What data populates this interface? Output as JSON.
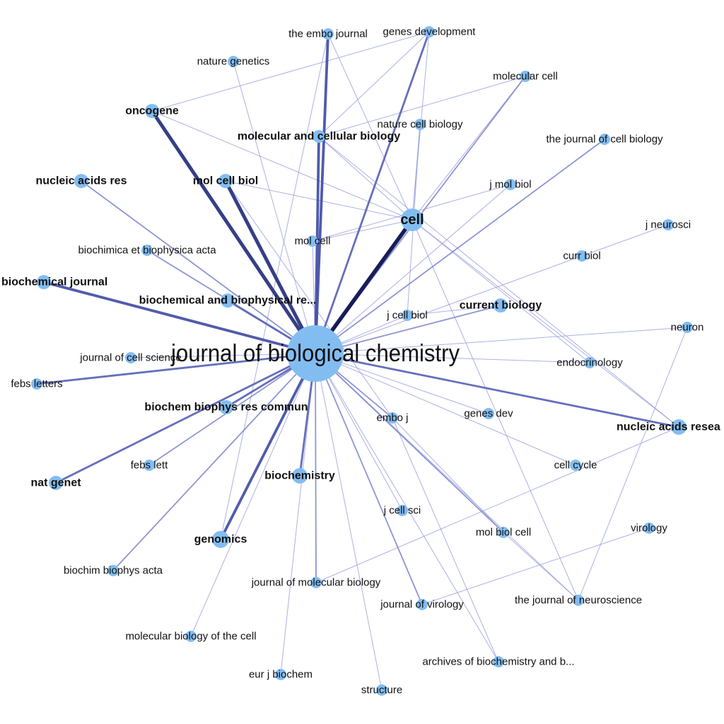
{
  "diagram": {
    "type": "network-graph",
    "node_color": "#82bdf2",
    "hub": "journal of biological chemistry",
    "nodes": [
      {
        "id": "jbc",
        "label": "journal of biological chemistry",
        "weight": "hub"
      },
      {
        "id": "embo_journal",
        "label": "the embo journal",
        "weight": "minor"
      },
      {
        "id": "genes_development",
        "label": "genes  development",
        "weight": "minor"
      },
      {
        "id": "nature_genetics",
        "label": "nature genetics",
        "weight": "minor"
      },
      {
        "id": "molecular_cell",
        "label": "molecular cell",
        "weight": "minor"
      },
      {
        "id": "oncogene",
        "label": "oncogene",
        "weight": "major"
      },
      {
        "id": "nature_cell_biology",
        "label": "nature cell biology",
        "weight": "minor"
      },
      {
        "id": "mcb_full",
        "label": "molecular and cellular biology",
        "weight": "major"
      },
      {
        "id": "jcb_full",
        "label": "the journal of cell biology",
        "weight": "minor"
      },
      {
        "id": "nucleic_acids_res",
        "label": "nucleic acids res",
        "weight": "major"
      },
      {
        "id": "mol_cell_biol",
        "label": "mol cell biol",
        "weight": "major"
      },
      {
        "id": "j_mol_biol",
        "label": "j mol biol",
        "weight": "minor"
      },
      {
        "id": "cell",
        "label": "cell",
        "weight": "major"
      },
      {
        "id": "j_neurosci",
        "label": "j neurosci",
        "weight": "minor"
      },
      {
        "id": "mol_cell",
        "label": "mol cell",
        "weight": "minor"
      },
      {
        "id": "bba_full",
        "label": "biochimica et biophysica acta",
        "weight": "minor"
      },
      {
        "id": "curr_biol",
        "label": "curr biol",
        "weight": "minor"
      },
      {
        "id": "biochemical_journal",
        "label": "biochemical journal",
        "weight": "major"
      },
      {
        "id": "bbrc_full",
        "label": "biochemical and biophysical re...",
        "weight": "major"
      },
      {
        "id": "current_biology",
        "label": "current biology",
        "weight": "major"
      },
      {
        "id": "j_cell_biol",
        "label": "j cell biol",
        "weight": "minor"
      },
      {
        "id": "neuron",
        "label": "neuron",
        "weight": "minor"
      },
      {
        "id": "j_cell_science",
        "label": "journal of cell science",
        "weight": "minor"
      },
      {
        "id": "endocrinology",
        "label": "endocrinology",
        "weight": "minor"
      },
      {
        "id": "febs_letters",
        "label": "febs letters",
        "weight": "minor"
      },
      {
        "id": "bbrc_abbr",
        "label": "biochem biophys res commun",
        "weight": "major"
      },
      {
        "id": "embo_j",
        "label": "embo j",
        "weight": "minor"
      },
      {
        "id": "genes_dev",
        "label": "genes dev",
        "weight": "minor"
      },
      {
        "id": "nar_full",
        "label": "nucleic acids resea",
        "weight": "major"
      },
      {
        "id": "febs_lett",
        "label": "febs lett",
        "weight": "minor"
      },
      {
        "id": "cell_cycle",
        "label": "cell cycle",
        "weight": "minor"
      },
      {
        "id": "nat_genet",
        "label": "nat genet",
        "weight": "major"
      },
      {
        "id": "biochemistry",
        "label": "biochemistry",
        "weight": "major"
      },
      {
        "id": "j_cell_sci",
        "label": "j cell sci",
        "weight": "minor"
      },
      {
        "id": "mol_biol_cell",
        "label": "mol biol cell",
        "weight": "minor"
      },
      {
        "id": "virology",
        "label": "virology",
        "weight": "minor"
      },
      {
        "id": "genomics",
        "label": "genomics",
        "weight": "major"
      },
      {
        "id": "bba_abbr",
        "label": "biochim biophys acta",
        "weight": "minor"
      },
      {
        "id": "jmb_full",
        "label": "journal of molecular biology",
        "weight": "minor"
      },
      {
        "id": "j_virology",
        "label": "journal of virology",
        "weight": "minor"
      },
      {
        "id": "j_neuroscience",
        "label": "the journal of neuroscience",
        "weight": "minor"
      },
      {
        "id": "mbc_full",
        "label": "molecular biology of the cell",
        "weight": "minor"
      },
      {
        "id": "archives",
        "label": "archives of biochemistry and b...",
        "weight": "minor"
      },
      {
        "id": "eur_j_biochem",
        "label": "eur j biochem",
        "weight": "minor"
      },
      {
        "id": "structure",
        "label": "structure",
        "weight": "minor"
      }
    ],
    "edges": [
      {
        "source": "jbc",
        "target": "cell",
        "strength": 6
      },
      {
        "source": "jbc",
        "target": "oncogene",
        "strength": 5
      },
      {
        "source": "jbc",
        "target": "mol_cell_biol",
        "strength": 5
      },
      {
        "source": "jbc",
        "target": "genomics",
        "strength": 4
      },
      {
        "source": "jbc",
        "target": "biochemical_journal",
        "strength": 4
      },
      {
        "source": "jbc",
        "target": "mcb_full",
        "strength": 4
      },
      {
        "source": "jbc",
        "target": "embo_journal",
        "strength": 4
      },
      {
        "source": "jbc",
        "target": "bbrc_full",
        "strength": 3
      },
      {
        "source": "jbc",
        "target": "bbrc_abbr",
        "strength": 3
      },
      {
        "source": "jbc",
        "target": "nat_genet",
        "strength": 3
      },
      {
        "source": "jbc",
        "target": "biochemistry",
        "strength": 3
      },
      {
        "source": "jbc",
        "target": "genes_development",
        "strength": 3
      },
      {
        "source": "jbc",
        "target": "nar_full",
        "strength": 3
      },
      {
        "source": "jbc",
        "target": "febs_letters",
        "strength": 3
      },
      {
        "source": "jbc",
        "target": "jcb_full",
        "strength": 2
      },
      {
        "source": "jbc",
        "target": "molecular_cell",
        "strength": 2
      },
      {
        "source": "jbc",
        "target": "current_biology",
        "strength": 2
      },
      {
        "source": "jbc",
        "target": "febs_lett",
        "strength": 2
      },
      {
        "source": "jbc",
        "target": "bba_full",
        "strength": 2
      },
      {
        "source": "jbc",
        "target": "nucleic_acids_res",
        "strength": 2
      },
      {
        "source": "jbc",
        "target": "jmb_full",
        "strength": 2
      },
      {
        "source": "jbc",
        "target": "j_virology",
        "strength": 2
      },
      {
        "source": "jbc",
        "target": "mol_biol_cell",
        "strength": 2
      },
      {
        "source": "jbc",
        "target": "embo_j",
        "strength": 2
      },
      {
        "source": "jbc",
        "target": "bba_abbr",
        "strength": 2
      },
      {
        "source": "jbc",
        "target": "nature_genetics",
        "strength": 1
      },
      {
        "source": "jbc",
        "target": "neuron",
        "strength": 1
      },
      {
        "source": "jbc",
        "target": "endocrinology",
        "strength": 1
      },
      {
        "source": "jbc",
        "target": "j_cell_science",
        "strength": 1
      },
      {
        "source": "jbc",
        "target": "genes_dev",
        "strength": 1
      },
      {
        "source": "jbc",
        "target": "cell_cycle",
        "strength": 1
      },
      {
        "source": "jbc",
        "target": "j_cell_sci",
        "strength": 1
      },
      {
        "source": "jbc",
        "target": "mbc_full",
        "strength": 1
      },
      {
        "source": "jbc",
        "target": "eur_j_biochem",
        "strength": 1
      },
      {
        "source": "jbc",
        "target": "structure",
        "strength": 1
      },
      {
        "source": "jbc",
        "target": "archives",
        "strength": 1
      },
      {
        "source": "jbc",
        "target": "j_neuroscience",
        "strength": 1
      },
      {
        "source": "jbc",
        "target": "j_mol_biol",
        "strength": 1
      },
      {
        "source": "jbc",
        "target": "mol_cell",
        "strength": 1
      },
      {
        "source": "jbc",
        "target": "j_cell_biol",
        "strength": 1
      },
      {
        "source": "jbc",
        "target": "curr_biol",
        "strength": 1
      },
      {
        "source": "cell",
        "target": "oncogene",
        "strength": 1
      },
      {
        "source": "cell",
        "target": "mcb_full",
        "strength": 1
      },
      {
        "source": "cell",
        "target": "embo_journal",
        "strength": 1
      },
      {
        "source": "cell",
        "target": "mol_cell_biol",
        "strength": 1
      },
      {
        "source": "cell",
        "target": "molecular_cell",
        "strength": 1
      },
      {
        "source": "cell",
        "target": "nature_cell_biology",
        "strength": 1
      },
      {
        "source": "cell",
        "target": "nar_full",
        "strength": 1
      },
      {
        "source": "cell",
        "target": "mol_cell",
        "strength": 1
      },
      {
        "source": "cell",
        "target": "endocrinology",
        "strength": 1
      },
      {
        "source": "cell",
        "target": "j_neuroscience",
        "strength": 1
      },
      {
        "source": "cell",
        "target": "genes_development",
        "strength": 1
      },
      {
        "source": "genes_development",
        "target": "oncogene",
        "strength": 1
      },
      {
        "source": "genes_development",
        "target": "mcb_full",
        "strength": 1
      },
      {
        "source": "mcb_full",
        "target": "nar_full",
        "strength": 1
      },
      {
        "source": "molecular_cell",
        "target": "mcb_full",
        "strength": 1
      },
      {
        "source": "nature_cell_biology",
        "target": "j_cell_biol",
        "strength": 1
      },
      {
        "source": "j_mol_biol",
        "target": "mol_cell",
        "strength": 1
      },
      {
        "source": "mol_cell_biol",
        "target": "embo_j",
        "strength": 1
      },
      {
        "source": "curr_biol",
        "target": "j_neurosci",
        "strength": 1
      },
      {
        "source": "j_cell_biol",
        "target": "current_biology",
        "strength": 1
      },
      {
        "source": "embo_j",
        "target": "mol_biol_cell",
        "strength": 1
      },
      {
        "source": "mol_biol_cell",
        "target": "j_neuroscience",
        "strength": 1
      },
      {
        "source": "j_virology",
        "target": "virology",
        "strength": 1
      },
      {
        "source": "nar_full",
        "target": "jmb_full",
        "strength": 1
      },
      {
        "source": "neuron",
        "target": "j_neuroscience",
        "strength": 1
      },
      {
        "source": "genomics",
        "target": "embo_journal",
        "strength": 1
      },
      {
        "source": "embo_j",
        "target": "archives",
        "strength": 1
      }
    ]
  }
}
